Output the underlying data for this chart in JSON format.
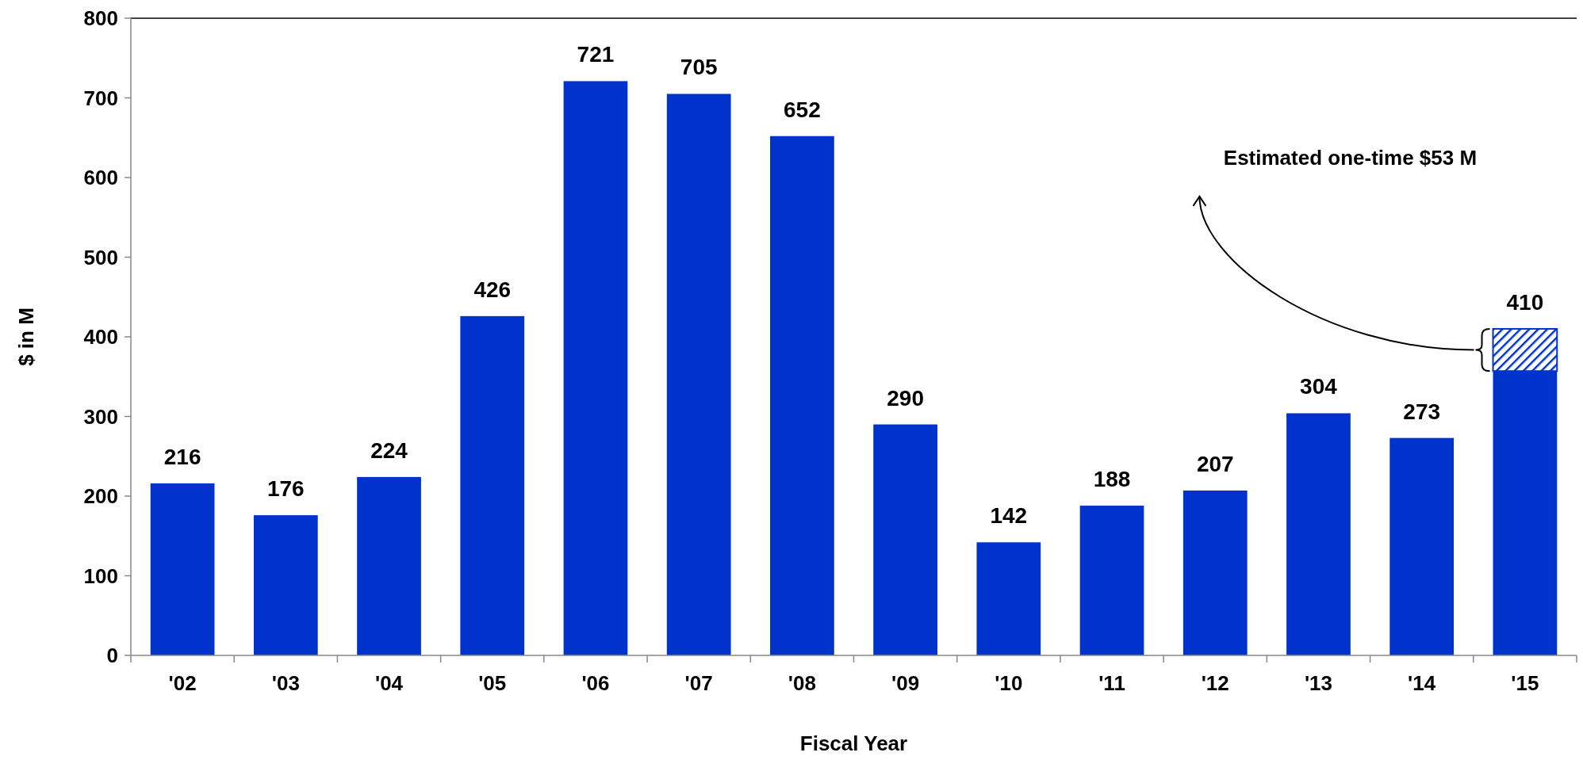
{
  "chart_data": {
    "type": "bar",
    "xlabel": "Fiscal Year",
    "ylabel": "$ in M",
    "categories": [
      "'02",
      "'03",
      "'04",
      "'05",
      "'06",
      "'07",
      "'08",
      "'09",
      "'10",
      "'11",
      "'12",
      "'13",
      "'14",
      "'15"
    ],
    "stacked": true,
    "series": [
      {
        "color": "#0033cc",
        "values": [
          216,
          176,
          224,
          426,
          721,
          705,
          652,
          290,
          142,
          188,
          207,
          304,
          273,
          357
        ]
      },
      {
        "color": "#0033cc",
        "values": [
          null,
          null,
          null,
          null,
          null,
          null,
          null,
          null,
          null,
          null,
          null,
          null,
          null,
          53
        ]
      }
    ],
    "totals": [
      "216",
      "176",
      "224",
      "426",
      "721",
      "705",
      "652",
      "290",
      "142",
      "188",
      "207",
      "304",
      "273",
      "410"
    ],
    "ylim": [
      0,
      800
    ],
    "yticks": [
      0,
      100,
      200,
      300,
      400,
      500,
      600,
      700,
      800
    ],
    "grid": false,
    "annotations": [
      "Estimated one-time $53 M"
    ]
  }
}
